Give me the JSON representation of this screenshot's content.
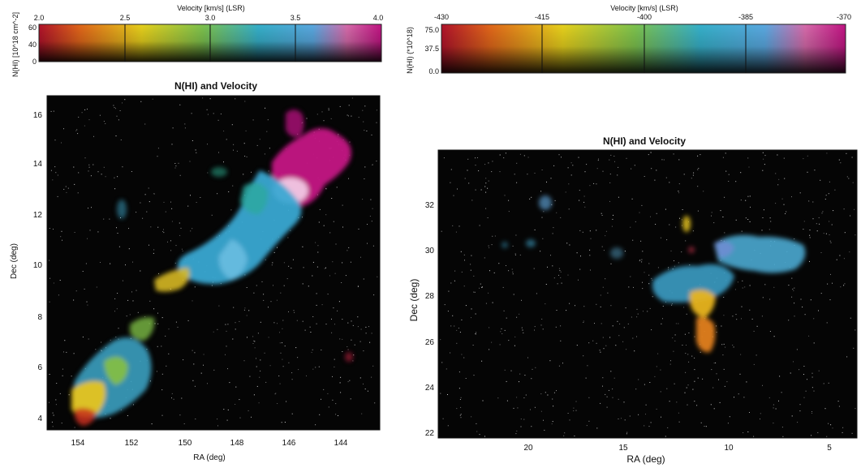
{
  "panels": [
    {
      "id": "left",
      "title": "N(HI) and Velocity",
      "colorbar": {
        "title": "Velocity [km/s] (LSR)",
        "ylabel": "N(HI) [10^18 cm^-2]",
        "xticks": [
          "2.0",
          "2.5",
          "3.0",
          "3.5",
          "4.0"
        ],
        "yticks": [
          "60",
          "40",
          "0"
        ]
      },
      "map": {
        "xlabel": "RA (deg)",
        "ylabel": "Dec (deg)",
        "xticks": [
          "154",
          "152",
          "150",
          "148",
          "146",
          "144"
        ],
        "yticks": [
          "16",
          "14",
          "12",
          "10",
          "8",
          "6",
          "4"
        ]
      }
    },
    {
      "id": "right",
      "title": "N(HI) and Velocity",
      "colorbar": {
        "title": "Velocity [km/s] (LSR)",
        "ylabel": "N(HI) (*10^18)",
        "xticks": [
          "-430",
          "-415",
          "-400",
          "-385",
          "-370"
        ],
        "yticks": [
          "75.0",
          "37.5",
          "0.0"
        ]
      },
      "map": {
        "xlabel": "RA (deg)",
        "ylabel": "Dec (deg)",
        "xticks": [
          "20",
          "15",
          "10",
          "5"
        ],
        "yticks": [
          "32",
          "30",
          "28",
          "26",
          "24",
          "22"
        ]
      }
    }
  ],
  "colors": {
    "background": "#050505",
    "spectrum": [
      "#b5142a",
      "#e06a18",
      "#e8d21c",
      "#88c34a",
      "#38b2c8",
      "#5aa6e0",
      "#d86aaa",
      "#c01482"
    ]
  }
}
